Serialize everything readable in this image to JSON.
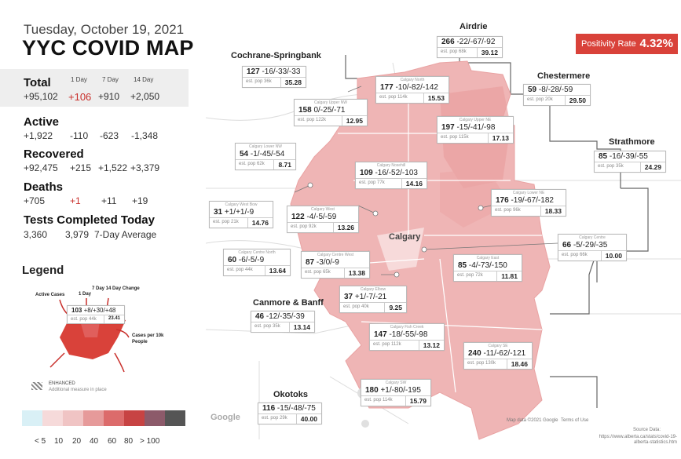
{
  "header": {
    "date": "Tuesday, October 19, 2021",
    "title": "YYC COVID MAP"
  },
  "summary": {
    "col_1day": "1 Day",
    "col_7day": "7 Day",
    "col_14day": "14 Day",
    "total": {
      "label": "Total",
      "value": "+95,102",
      "d1": "+106",
      "d7": "+910",
      "d14": "+2,050"
    },
    "active": {
      "label": "Active",
      "value": "+1,922",
      "d1": "-110",
      "d7": "-623",
      "d14": "-1,348"
    },
    "recovered": {
      "label": "Recovered",
      "value": "+92,475",
      "d1": "+215",
      "d7": "+1,522",
      "d14": "+3,379"
    },
    "deaths": {
      "label": "Deaths",
      "value": "+705",
      "d1": "+1",
      "d7": "+11",
      "d14": "+19"
    },
    "tests": {
      "label": "Tests Completed Today",
      "value": "3,360",
      "avg": "3,979",
      "avg_label": "7-Day Average"
    }
  },
  "legend": {
    "title": "Legend",
    "active_cases": "Active Cases",
    "one_day": "1 Day",
    "seven_fourteen": "7 Day 14 Day Change",
    "sample_row1": "103",
    "sample_changes": "+8/+30/+48",
    "sample_pop": "est. pop 44k",
    "sample_rate": "23.41",
    "cases_per": "Cases per 10k People",
    "enhanced": "ENHANCED",
    "enhanced_desc": "Additional measure in place",
    "scale_labels": [
      "< 5",
      "10",
      "20",
      "40",
      "60",
      "80",
      "> 100"
    ],
    "scale_colors": [
      "#d9f0f6",
      "#f6dada",
      "#f0c4c4",
      "#e69a9a",
      "#dc6b6b",
      "#c74343",
      "#8c5a6a",
      "#555555"
    ]
  },
  "positivity": {
    "label": "Positivity Rate",
    "value": "4.32%"
  },
  "regions": {
    "airdrie": "Airdrie",
    "cochrane": "Cochrane-Springbank",
    "chestermere": "Chestermere",
    "strathmore": "Strathmore",
    "canmore": "Canmore & Banff",
    "okotoks": "Okotoks",
    "calgary": "Calgary"
  },
  "boxes": [
    {
      "id": "airdrie",
      "name": "",
      "active": "266",
      "changes": "-22/-67/-92",
      "pop": "est. pop 68k",
      "rate": "39.12"
    },
    {
      "id": "cochrane",
      "name": "",
      "active": "127",
      "changes": "-16/-33/-33",
      "pop": "est. pop 36k",
      "rate": "35.28"
    },
    {
      "id": "north",
      "name": "Calgary North",
      "active": "177",
      "changes": "-10/-82/-142",
      "pop": "est. pop 114k",
      "rate": "15.53"
    },
    {
      "id": "upper-nw",
      "name": "Calgary Upper NW",
      "active": "158",
      "changes": "0/-25/-71",
      "pop": "est. pop 122k",
      "rate": "12.95"
    },
    {
      "id": "upper-ne",
      "name": "Calgary Upper NE",
      "active": "197",
      "changes": "-15/-41/-98",
      "pop": "est. pop 115k",
      "rate": "17.13"
    },
    {
      "id": "chestermere",
      "name": "",
      "active": "59",
      "changes": "-8/-28/-59",
      "pop": "est. pop 20k",
      "rate": "29.50"
    },
    {
      "id": "lower-nw",
      "name": "Calgary Lower NW",
      "active": "54",
      "changes": "-1/-45/-54",
      "pop": "est. pop 62k",
      "rate": "8.71"
    },
    {
      "id": "nosehill",
      "name": "Calgary Nosehill",
      "active": "109",
      "changes": "-16/-52/-103",
      "pop": "est. pop 77k",
      "rate": "14.16"
    },
    {
      "id": "strathmore",
      "name": "",
      "active": "85",
      "changes": "-16/-39/-55",
      "pop": "est. pop 35k",
      "rate": "24.29"
    },
    {
      "id": "west-bow",
      "name": "Calgary West Bow",
      "active": "31",
      "changes": "+1/+1/-9",
      "pop": "est. pop 21k",
      "rate": "14.76"
    },
    {
      "id": "west",
      "name": "Calgary West",
      "active": "122",
      "changes": "-4/-5/-59",
      "pop": "est. pop 92k",
      "rate": "13.26"
    },
    {
      "id": "lower-ne",
      "name": "Calgary Lower NE",
      "active": "176",
      "changes": "-19/-67/-182",
      "pop": "est. pop 96k",
      "rate": "18.33"
    },
    {
      "id": "centre",
      "name": "Calgary Centre",
      "active": "66",
      "changes": "-5/-29/-35",
      "pop": "est. pop 66k",
      "rate": "10.00"
    },
    {
      "id": "centre-north",
      "name": "Calgary Centre North",
      "active": "60",
      "changes": "-6/-5/-9",
      "pop": "est. pop 44k",
      "rate": "13.64"
    },
    {
      "id": "centre-west",
      "name": "Calgary Centre West",
      "active": "87",
      "changes": "-3/0/-9",
      "pop": "est. pop 65k",
      "rate": "13.38"
    },
    {
      "id": "east",
      "name": "Calgary East",
      "active": "85",
      "changes": "-4/-73/-150",
      "pop": "est. pop 72k",
      "rate": "11.81"
    },
    {
      "id": "elbow",
      "name": "Calgary Elbow",
      "active": "37",
      "changes": "+1/-7/-21",
      "pop": "est. pop 40k",
      "rate": "9.25"
    },
    {
      "id": "canmore",
      "name": "",
      "active": "46",
      "changes": "-12/-35/-39",
      "pop": "est. pop 35k",
      "rate": "13.14"
    },
    {
      "id": "fish-creek",
      "name": "Calgary Fish Creek",
      "active": "147",
      "changes": "-18/-55/-98",
      "pop": "est. pop 112k",
      "rate": "13.12"
    },
    {
      "id": "se",
      "name": "Calgary SE",
      "active": "240",
      "changes": "-11/-62/-121",
      "pop": "est. pop 130k",
      "rate": "18.46"
    },
    {
      "id": "sw",
      "name": "Calgary SW",
      "active": "180",
      "changes": "+1/-80/-195",
      "pop": "est. pop 114k",
      "rate": "15.79"
    },
    {
      "id": "okotoks",
      "name": "",
      "active": "116",
      "changes": "-15/-48/-75",
      "pop": "est. pop 29k",
      "rate": "40.00"
    }
  ],
  "footer": {
    "map_data": "Map data ©2021 Google",
    "terms": "Terms of Use",
    "source_label": "Source Data:",
    "source_url": "https://www.alberta.ca/stats/covid-19-alberta-statistics.htm",
    "google": "Google"
  }
}
